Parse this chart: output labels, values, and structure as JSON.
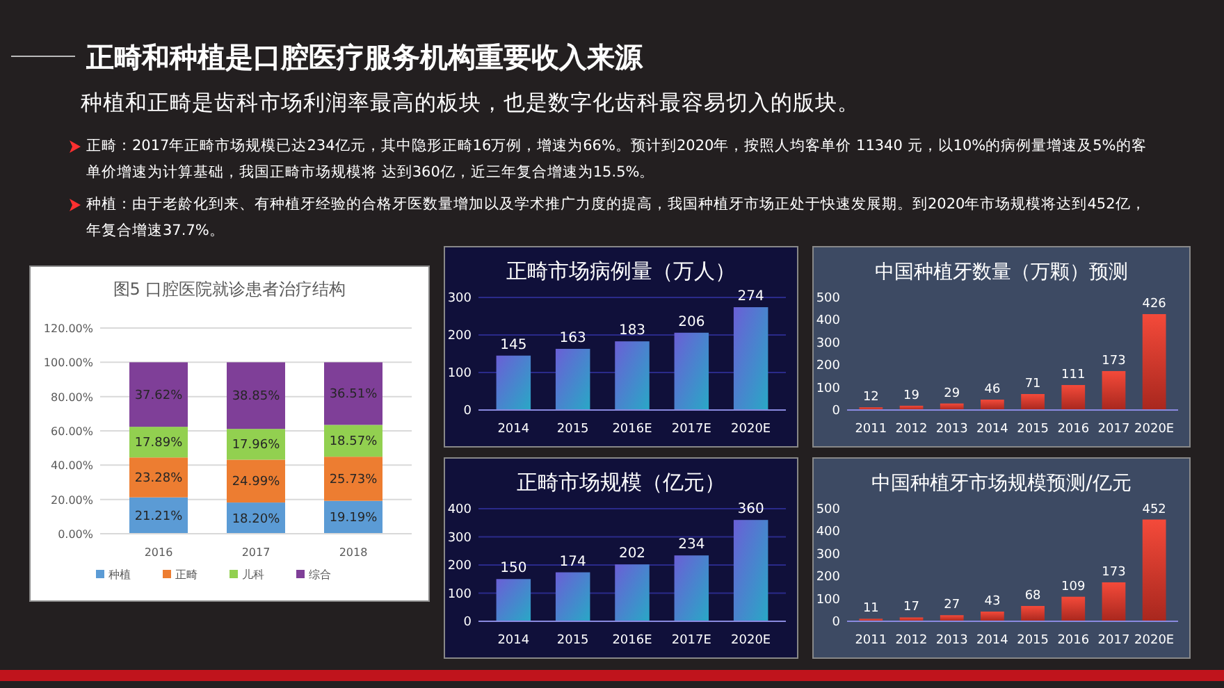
{
  "chart_data": [
    {
      "type": "other",
      "title": "正畸和种植是口腔医疗服务机构重要收入来源",
      "subtitle": "种植和正畸是齿科市场利润率最高的板块，也是数字化齿科最容易切入的版块。",
      "annotations": [
        "正畸：2017年正畸市场规模已达234亿元，其中隐形正畸16万例，增速为66%。预计到2020年，按照人均客单价 11340 元，以10%的病例量增速及5%的客单价增速为计算基础，我国正畸市场规模将 达到360亿，近三年复合增速为15.5%。",
        "种植：由于老龄化到来、有种植牙经验的合格牙医数量增加以及学术推广力度的提高，我国种植牙市场正处于快速发展期。到2020年市场规模将达到452亿，年复合增速37.7%。"
      ]
    },
    {
      "type": "bar",
      "title": "图5 口腔医院就诊患者治疗结构",
      "stacked": true,
      "categories": [
        "2016",
        "2017",
        "2018"
      ],
      "ylim": [
        0,
        120
      ],
      "yticks": [
        {
          "value": 0,
          "label": "0.00%"
        },
        {
          "value": 20,
          "label": "20.00%"
        },
        {
          "value": 40,
          "label": "40.00%"
        },
        {
          "value": 60,
          "label": "60.00%"
        },
        {
          "value": 80,
          "label": "80.00%"
        },
        {
          "value": 100,
          "label": "100.00%"
        },
        {
          "value": 120,
          "label": "120.00%"
        }
      ],
      "grid": "y",
      "legend": "bottom",
      "series": [
        {
          "name": "种植",
          "color": "#5b9bd5",
          "values": [
            21.21,
            18.2,
            19.19
          ],
          "value_labels": [
            "21.21%",
            "18.20%",
            "19.19%"
          ]
        },
        {
          "name": "正畸",
          "color": "#ed7d31",
          "values": [
            23.28,
            24.99,
            25.73
          ],
          "value_labels": [
            "23.28%",
            "24.99%",
            "25.73%"
          ]
        },
        {
          "name": "儿科",
          "color": "#92d050",
          "values": [
            17.89,
            17.96,
            18.57
          ],
          "value_labels": [
            "17.89%",
            "17.96%",
            "18.57%"
          ]
        },
        {
          "name": "综合",
          "color": "#7f3f98",
          "values": [
            37.62,
            38.85,
            36.51
          ],
          "value_labels": [
            "37.62%",
            "38.85%",
            "36.51%"
          ]
        }
      ]
    },
    {
      "type": "bar",
      "title": "正畸市场病例量（万人）",
      "categories": [
        "2014",
        "2015",
        "2016E",
        "2017E",
        "2020E"
      ],
      "values": [
        145,
        163,
        183,
        206,
        274
      ],
      "color": "#6a5fd6",
      "ylim": [
        0,
        300
      ],
      "yticks": [
        0,
        100,
        200,
        300
      ],
      "grid": "y",
      "data_labels": true
    },
    {
      "type": "bar",
      "title": "中国种植牙数量（万颗）预测",
      "categories": [
        "2011",
        "2012",
        "2013",
        "2014",
        "2015",
        "2016",
        "2017",
        "2020E"
      ],
      "values": [
        12,
        19,
        29,
        46,
        71,
        111,
        173,
        426
      ],
      "color": "#f44a3a",
      "ylim": [
        0,
        500
      ],
      "yticks": [
        0,
        100,
        200,
        300,
        400,
        500
      ],
      "data_labels": true
    },
    {
      "type": "bar",
      "title": "正畸市场规模（亿元）",
      "categories": [
        "2014",
        "2015",
        "2016E",
        "2017E",
        "2020E"
      ],
      "values": [
        150,
        174,
        202,
        234,
        360
      ],
      "color": "#6a5fd6",
      "ylim": [
        0,
        400
      ],
      "yticks": [
        0,
        100,
        200,
        300,
        400
      ],
      "grid": "y",
      "data_labels": true
    },
    {
      "type": "bar",
      "title": "中国种植牙市场规模预测/亿元",
      "categories": [
        "2011",
        "2012",
        "2013",
        "2014",
        "2015",
        "2016",
        "2017",
        "2020E"
      ],
      "values": [
        11,
        17,
        27,
        43,
        68,
        109,
        173,
        452
      ],
      "color": "#f44a3a",
      "ylim": [
        0,
        500
      ],
      "yticks": [
        0,
        100,
        200,
        300,
        400,
        500
      ],
      "data_labels": true
    }
  ]
}
